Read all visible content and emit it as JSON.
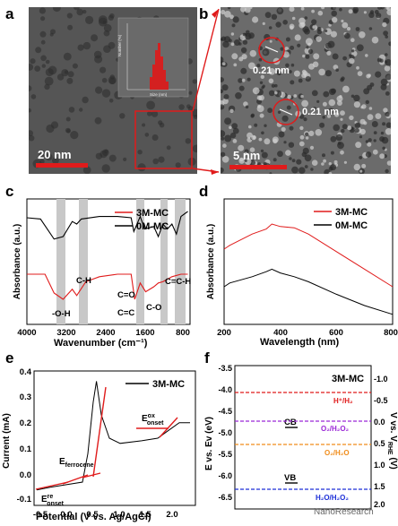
{
  "panels": {
    "a": {
      "letter": "a",
      "scale_bar": "20 nm",
      "inset": {
        "ylabel": "Number (%)",
        "xlabel": "Size (nm)",
        "yticks": [
          "0",
          "5",
          "10",
          "15",
          "20",
          "25",
          "30"
        ],
        "xticks": [
          "0",
          "1",
          "2",
          "3",
          "4",
          "5",
          "6",
          "7",
          "8",
          "9",
          "10"
        ]
      }
    },
    "b": {
      "letter": "b",
      "scale_bar": "5 nm",
      "lattice_1": "0.21 nm",
      "lattice_2": "0.21 nm"
    },
    "c": {
      "letter": "c",
      "xlabel": "Wavenumber (cm⁻¹)",
      "ylabel": "Absorbance (a.u.)",
      "xticks": [
        "4000",
        "3200",
        "2400",
        "1600",
        "800"
      ],
      "legend": [
        "3M-MC",
        "0M-MC"
      ],
      "annotations": {
        "oh": "-O-H",
        "ch": "C-H",
        "co_top": "C=O",
        "cc": "C=C",
        "co": "C-O",
        "cch": "C=C-H"
      }
    },
    "d": {
      "letter": "d",
      "xlabel": "Wavelength (nm)",
      "ylabel": "Absorbance (a.u.)",
      "xticks": [
        "200",
        "400",
        "600",
        "800"
      ],
      "legend": [
        "3M-MC",
        "0M-MC"
      ]
    },
    "e": {
      "letter": "e",
      "xlabel": "Potential (V vs. Ag/AgCl)",
      "ylabel": "Current (mA)",
      "xticks": [
        "-0.5",
        "0.0",
        "0.5",
        "1.0",
        "1.5",
        "2.0"
      ],
      "yticks": [
        "-0.1",
        "0.0",
        "0.1",
        "0.2",
        "0.3",
        "0.4"
      ],
      "legend": "3M-MC",
      "labels": {
        "ferro_main": "E",
        "ferro_sub": "ferrocene",
        "ox_main": "E",
        "ox_sup": "ox",
        "ox_sub": "onset",
        "re_main": "E",
        "re_sup": "re",
        "re_sub": "onset"
      }
    },
    "f": {
      "letter": "f",
      "title": "3M-MC",
      "left_label": "E vs. Ev (eV)",
      "right_label_main": "V vs. V",
      "right_label_sub": "RHE",
      "right_label_end": " (V)",
      "left_ticks": [
        "-3.5",
        "-4.0",
        "-4.5",
        "-5.0",
        "-5.5",
        "-6.0",
        "-6.5"
      ],
      "right_ticks": [
        "-1.0",
        "-0.5",
        "0.0",
        "0.5",
        "1.0",
        "1.5",
        "2.0"
      ],
      "cb": "CB",
      "vb": "VB",
      "levels": {
        "h": "H⁺/H₂",
        "o2h2o2": "O₂/H₂O₂",
        "o2h2o": "O₂/H₂O",
        "h2oh2o2": "H₂O/H₂O₂"
      },
      "colors": {
        "h": "#e8141c",
        "o2h2o2": "#9b28d6",
        "o2h2o": "#f08c1a",
        "h2oh2o2": "#1c2fd8"
      }
    },
    "watermark": "NanoResearch"
  },
  "chart_data": [
    {
      "type": "line",
      "panel": "c",
      "xlabel": "Wavenumber (cm-1)",
      "ylabel": "Absorbance (a.u.)",
      "xlim": [
        4000,
        400
      ],
      "series": [
        {
          "name": "3M-MC",
          "x": [
            4000,
            3600,
            3400,
            3200,
            3000,
            2900,
            2700,
            2400,
            2000,
            1700,
            1620,
            1500,
            1380,
            1200,
            1100,
            1000,
            800,
            600,
            450
          ],
          "y": [
            0.4,
            0.4,
            0.25,
            0.2,
            0.28,
            0.23,
            0.34,
            0.38,
            0.4,
            0.4,
            0.2,
            0.33,
            0.26,
            0.3,
            0.33,
            0.34,
            0.38,
            0.4,
            0.4
          ]
        },
        {
          "name": "0M-MC",
          "x": [
            4000,
            3700,
            3400,
            3200,
            3000,
            2900,
            2800,
            2400,
            2000,
            1700,
            1640,
            1500,
            1400,
            1200,
            1100,
            1000,
            900,
            800,
            700,
            600,
            450
          ],
          "y": [
            0.85,
            0.84,
            0.68,
            0.7,
            0.82,
            0.8,
            0.84,
            0.86,
            0.86,
            0.85,
            0.74,
            0.86,
            0.76,
            0.78,
            0.7,
            0.8,
            0.76,
            0.8,
            0.72,
            0.86,
            0.9
          ]
        }
      ]
    },
    {
      "type": "line",
      "panel": "d",
      "xlabel": "Wavelength (nm)",
      "ylabel": "Absorbance (a.u.)",
      "xlim": [
        200,
        800
      ],
      "series": [
        {
          "name": "3M-MC",
          "x": [
            200,
            220,
            300,
            350,
            370,
            400,
            450,
            500,
            600,
            700,
            800
          ],
          "y": [
            0.6,
            0.63,
            0.72,
            0.76,
            0.8,
            0.78,
            0.77,
            0.72,
            0.58,
            0.44,
            0.3
          ]
        },
        {
          "name": "0M-MC",
          "x": [
            200,
            220,
            300,
            350,
            370,
            400,
            450,
            500,
            600,
            700,
            800
          ],
          "y": [
            0.3,
            0.33,
            0.38,
            0.42,
            0.44,
            0.41,
            0.38,
            0.34,
            0.24,
            0.15,
            0.08
          ]
        }
      ]
    },
    {
      "type": "line",
      "panel": "e",
      "xlabel": "Potential (V vs. Ag/AgCl)",
      "ylabel": "Current (mA)",
      "xlim": [
        -0.6,
        2.4
      ],
      "ylim": [
        -0.1,
        0.42
      ],
      "series": [
        {
          "name": "3M-MC",
          "x": [
            -0.55,
            -0.3,
            0.0,
            0.3,
            0.4,
            0.5,
            0.56,
            0.65,
            0.8,
            1.0,
            1.4,
            1.7,
            1.9,
            2.1,
            2.3
          ],
          "y": [
            -0.04,
            -0.03,
            -0.02,
            -0.01,
            0.1,
            0.3,
            0.38,
            0.25,
            0.16,
            0.14,
            0.15,
            0.16,
            0.19,
            0.22,
            0.22
          ]
        }
      ]
    },
    {
      "type": "line",
      "panel": "f",
      "ylabel": "E vs. Ev (eV)",
      "ylim": [
        -3.3,
        -6.7
      ],
      "series": [
        {
          "name": "H+/H2",
          "y": [
            -4.44
          ]
        },
        {
          "name": "O2/H2O2",
          "y": [
            -5.12
          ]
        },
        {
          "name": "O2/H2O",
          "y": [
            -5.67
          ]
        },
        {
          "name": "H2O/H2O2",
          "y": [
            -6.22
          ]
        }
      ]
    }
  ]
}
